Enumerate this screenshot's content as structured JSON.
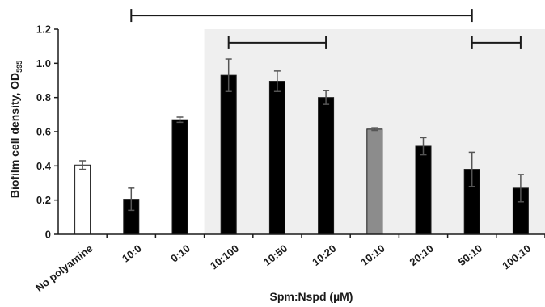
{
  "chart_data": {
    "type": "bar",
    "xlabel": "Spm:Nspd (µM)",
    "ylabel_main": "Biofilm cell density, OD",
    "ylabel_sub": "595",
    "ylim": [
      0,
      1.2
    ],
    "yticks": [
      "0",
      "0.2",
      "0.4",
      "0.6",
      "0.8",
      "1.0",
      "1.2"
    ],
    "categories": [
      "No polyamine",
      "10:0",
      "0:10",
      "10:100",
      "10:50",
      "10:20",
      "10:10",
      "20:10",
      "50:10",
      "100:10"
    ],
    "values": [
      0.405,
      0.205,
      0.67,
      0.93,
      0.895,
      0.8,
      0.615,
      0.515,
      0.38,
      0.27
    ],
    "errors": [
      0.025,
      0.065,
      0.015,
      0.095,
      0.06,
      0.04,
      0.008,
      0.05,
      0.1,
      0.08
    ],
    "bar_colors": [
      "#ffffff",
      "#000000",
      "#000000",
      "#000000",
      "#000000",
      "#000000",
      "#8c8c8c",
      "#000000",
      "#000000",
      "#000000"
    ],
    "shaded_region": {
      "from_category": 3,
      "to_category": 9,
      "color": "#efefef"
    },
    "brackets": [
      {
        "from": 1,
        "to": 8,
        "y": 1.28
      },
      {
        "from": 3,
        "to": 5,
        "y": 1.12
      },
      {
        "from": 8,
        "to": 9,
        "y": 1.12
      }
    ],
    "grid": false
  }
}
